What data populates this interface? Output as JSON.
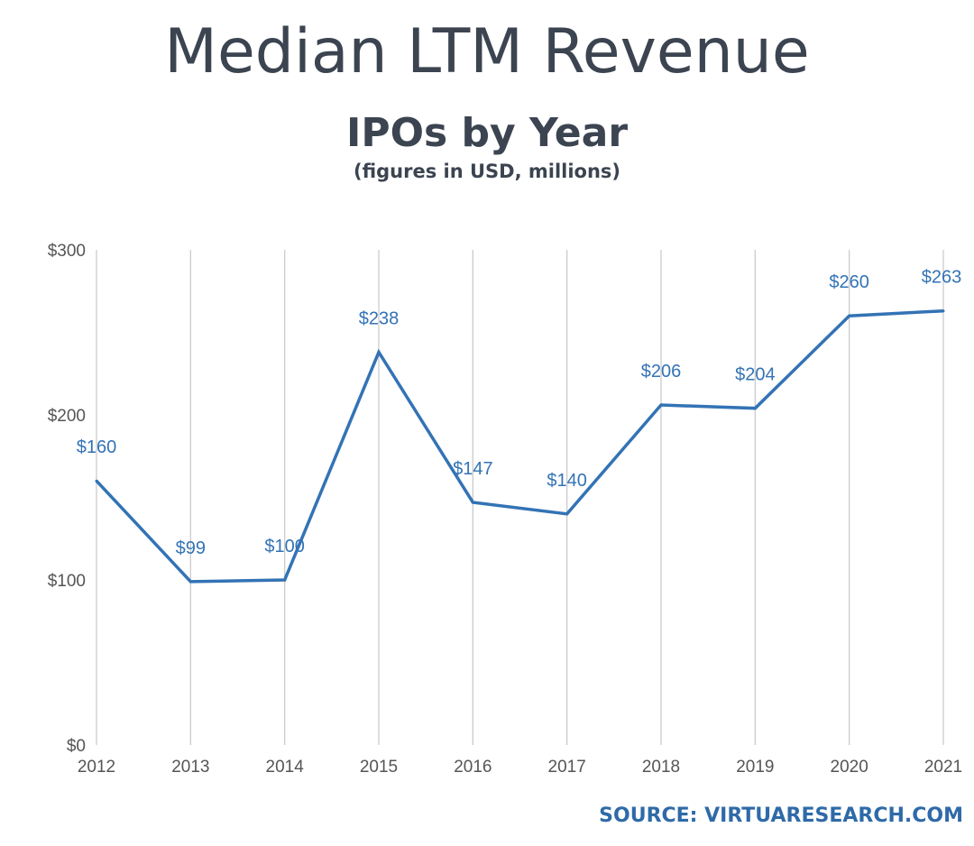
{
  "title": "Median LTM Revenue",
  "subtitle": "IPOs by Year",
  "note": "(figures in USD, millions)",
  "source": "SOURCE: VIRTUARESEARCH.COM",
  "colors": {
    "line": "#3373b5",
    "grid": "#cccccc",
    "title": "#3b4450",
    "source": "#2f6aa8"
  },
  "chart_data": {
    "type": "line",
    "title": "Median LTM Revenue",
    "subtitle": "IPOs by Year",
    "x": [
      "2012",
      "2013",
      "2014",
      "2015",
      "2016",
      "2017",
      "2018",
      "2019",
      "2020",
      "2021"
    ],
    "series": [
      {
        "values": [
          160,
          99,
          100,
          238,
          147,
          140,
          206,
          204,
          260,
          263
        ],
        "labels": [
          "$160",
          "$99",
          "$100",
          "$238",
          "$147",
          "$140",
          "$206",
          "$204",
          "$260",
          "$263"
        ]
      }
    ],
    "ylim": [
      0,
      300
    ],
    "yticks": [
      0,
      100,
      200,
      300
    ],
    "ytick_labels": [
      "$0",
      "$100",
      "$200",
      "$300"
    ],
    "grid": "vertical",
    "legend": "none"
  }
}
